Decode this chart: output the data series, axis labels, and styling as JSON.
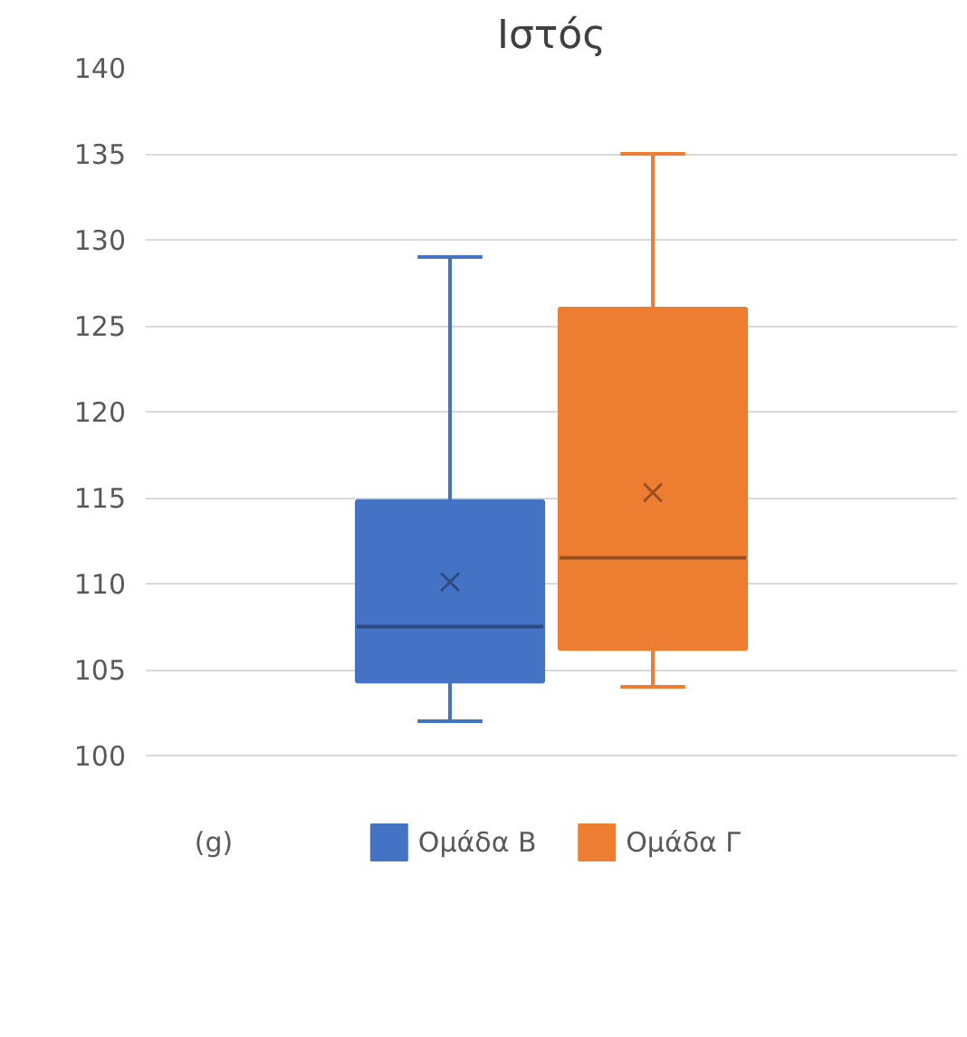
{
  "chart_data": {
    "type": "box",
    "title": "Ιστός",
    "categories": [
      null
    ],
    "annotations": [
      "(g)"
    ],
    "series": [
      {
        "name": "Ομάδα Β",
        "color": "#4472c4",
        "boxes": [
          {
            "low": 102,
            "q1": 104.3,
            "median": 107.5,
            "q3": 114.8,
            "high": 129,
            "mean": 110.1
          }
        ]
      },
      {
        "name": "Ομάδα Γ",
        "color": "#ed7d31",
        "boxes": [
          {
            "low": 104,
            "q1": 106.2,
            "median": 111.5,
            "q3": 126,
            "high": 135,
            "mean": 115.3
          }
        ]
      }
    ],
    "ylim": [
      100,
      140
    ],
    "yticks": [
      100,
      105,
      110,
      115,
      120,
      125,
      130,
      135,
      140
    ],
    "grid": "y",
    "legend": "bottom"
  }
}
